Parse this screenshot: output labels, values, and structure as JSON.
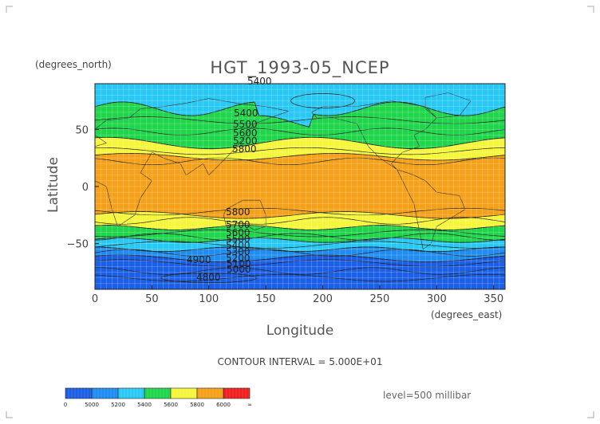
{
  "chart_data": {
    "type": "heatmap",
    "title": "HGT_1993-05_NCEP",
    "y_units": "(degrees_north)",
    "x_units": "(degrees_east)",
    "xlabel": "Longitude",
    "ylabel": "Latitude",
    "xlim": [
      0,
      360
    ],
    "ylim": [
      -90,
      90
    ],
    "x_ticks": [
      0,
      50,
      100,
      150,
      200,
      250,
      300,
      350
    ],
    "y_ticks": [
      50,
      0,
      -50
    ],
    "x_tick_labels": [
      "0",
      "50",
      "100",
      "150",
      "200",
      "250",
      "300",
      "350"
    ],
    "y_tick_labels": [
      "50",
      "0",
      "−50"
    ],
    "grid": true,
    "contour_interval_text": "CONTOUR INTERVAL = 5.000E+01",
    "level_text": "level=500 millibar",
    "contour_labels": [
      "5400",
      "5400",
      "5500",
      "5600",
      "5200",
      "5800",
      "5800",
      "5700",
      "5600",
      "5500",
      "5400",
      "5300",
      "5200",
      "5100",
      "5000",
      "4900",
      "4800"
    ],
    "colorbar": {
      "labels": [
        "0",
        "5000",
        "5200",
        "5400",
        "5600",
        "5800",
        "6000",
        "∞"
      ],
      "colors": [
        "#1b5fe6",
        "#1e8cf0",
        "#28c8f5",
        "#1fd54a",
        "#f5f53a",
        "#f5a019",
        "#f01e1e"
      ]
    },
    "bands": [
      {
        "level": "≥5800",
        "lat_range": [
          -25,
          25
        ],
        "color": "#f5a019"
      },
      {
        "level": "5600–5800",
        "lat_range": [
          25,
          38
        ],
        "color": "#f5f53a"
      },
      {
        "level": "5400–5600",
        "lat_range": [
          38,
          68
        ],
        "color": "#1fd54a"
      },
      {
        "level": "5200–5400",
        "lat_range": [
          68,
          90
        ],
        "color": "#28c8f5"
      },
      {
        "level": "5600–5800",
        "lat_range": [
          -38,
          -25
        ],
        "color": "#f5f53a"
      },
      {
        "level": "5400–5600",
        "lat_range": [
          -48,
          -38
        ],
        "color": "#1fd54a"
      },
      {
        "level": "5200–5400",
        "lat_range": [
          -55,
          -48
        ],
        "color": "#28c8f5"
      },
      {
        "level": "5000–5200",
        "lat_range": [
          -63,
          -55
        ],
        "color": "#1e8cf0"
      },
      {
        "level": "<5000",
        "lat_range": [
          -90,
          -63
        ],
        "color": "#1b5fe6"
      }
    ]
  }
}
